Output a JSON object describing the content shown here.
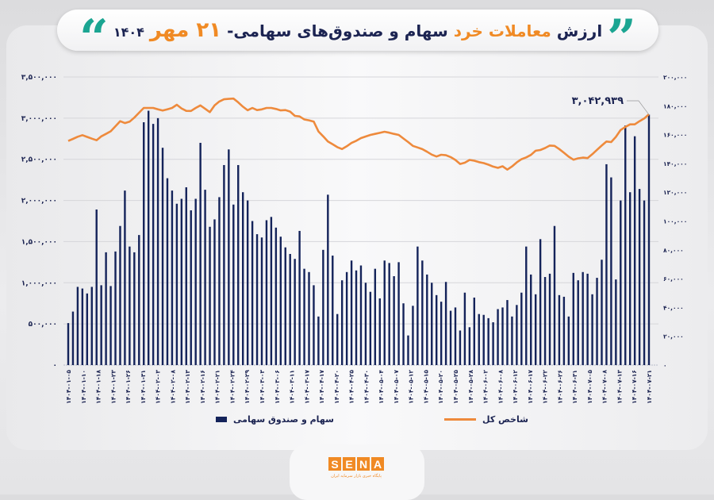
{
  "header": {
    "title_part1": "ارزش",
    "title_highlight": "معاملات خرد",
    "title_part2": "سهام و صندوق‌های سهامی-",
    "title_date": "۲۱ مهر",
    "title_year": "۱۴۰۴",
    "quote_open": "”",
    "quote_close": "“"
  },
  "logo": {
    "letters": [
      "S",
      "E",
      "N",
      "A"
    ],
    "subtitle": "پایگاه خبری بازار سرمایه ایران"
  },
  "colors": {
    "bars": "#14235a",
    "line": "#ee8a3c",
    "accent": "#f08a24",
    "quote": "#1ba592"
  },
  "chart_data": {
    "type": "bar+line",
    "title": "",
    "grid": true,
    "legend_placement": "bottom",
    "left_axis": {
      "ylim": [
        0,
        3500000
      ],
      "tick_labels": [
        "۰",
        "۵۰۰,۰۰۰",
        "۱,۰۰۰,۰۰۰",
        "۱,۵۰۰,۰۰۰",
        "۲,۰۰۰,۰۰۰",
        "۲,۵۰۰,۰۰۰",
        "۳,۰۰۰,۰۰۰",
        "۳,۵۰۰,۰۰۰"
      ],
      "tick_values": [
        0,
        500000,
        1000000,
        1500000,
        2000000,
        2500000,
        3000000,
        3500000
      ]
    },
    "right_axis": {
      "ylim": [
        0,
        200000
      ],
      "tick_labels": [
        "۰",
        "۲۰,۰۰۰",
        "۴۰,۰۰۰",
        "۶۰,۰۰۰",
        "۸۰,۰۰۰",
        "۱۰۰,۰۰۰",
        "۱۲۰,۰۰۰",
        "۱۴۰,۰۰۰",
        "۱۶۰,۰۰۰",
        "۱۸۰,۰۰۰",
        "۲۰۰,۰۰۰"
      ],
      "tick_values": [
        0,
        20000,
        40000,
        60000,
        80000,
        100000,
        120000,
        140000,
        160000,
        180000,
        200000
      ]
    },
    "x_tick_labels": [
      "۱۴۰۴-۰۱-۰۵",
      "۱۴۰۴-۰۱-۱۰",
      "۱۴۰۴-۰۱-۱۸",
      "۱۴۰۴-۰۱-۲۳",
      "۱۴۰۴-۰۱-۲۶",
      "۱۴۰۴-۰۱-۳۱",
      "۱۴۰۴-۰۲-۰۳",
      "۱۴۰۴-۰۲-۰۸",
      "۱۴۰۴-۰۲-۱۳",
      "۱۴۰۴-۰۲-۱۶",
      "۱۴۰۴-۰۲-۲۱",
      "۱۴۰۴-۰۲-۲۴",
      "۱۴۰۴-۰۲-۲۹",
      "۱۴۰۴-۰۳-۰۳",
      "۱۴۰۴-۰۳-۰۶",
      "۱۴۰۴-۰۳-۱۱",
      "۱۴۰۴-۰۳-۱۷",
      "۱۴۰۴-۰۴-۱۷",
      "۱۴۰۴-۰۴-۲۰",
      "۱۴۰۴-۰۴-۲۵",
      "۱۴۰۴-۰۴-۳۰",
      "۱۴۰۴-۰۵-۰۴",
      "۱۴۰۴-۰۵-۰۷",
      "۱۴۰۴-۰۵-۱۲",
      "۱۴۰۴-۰۵-۱۵",
      "۱۴۰۴-۰۵-۲۰",
      "۱۴۰۴-۰۵-۲۵",
      "۱۴۰۴-۰۵-۲۸",
      "۱۴۰۴-۰۶-۰۲",
      "۱۴۰۴-۰۶-۰۸",
      "۱۴۰۴-۰۶-۱۲",
      "۱۴۰۴-۰۶-۱۷",
      "۱۴۰۴-۰۶-۲۲",
      "۱۴۰۴-۰۶-۲۶",
      "۱۴۰۴-۰۶-۳۱",
      "۱۴۰۴-۰۷-۰۵",
      "۱۴۰۴-۰۷-۰۸",
      "۱۴۰۴-۰۷-۱۳",
      "۱۴۰۴-۰۷-۱۶",
      "۱۴۰۴-۰۷-۲۱"
    ],
    "series": [
      {
        "name": "سهام و صندوق سهامی",
        "type": "bar",
        "axis": "left",
        "values": [
          510000,
          650000,
          950000,
          930000,
          870000,
          950000,
          1890000,
          970000,
          1370000,
          960000,
          1380000,
          1690000,
          2120000,
          1440000,
          1370000,
          1580000,
          2950000,
          3090000,
          2930000,
          3000000,
          2640000,
          2270000,
          2120000,
          1960000,
          2020000,
          2160000,
          1880000,
          2020000,
          2700000,
          2130000,
          1680000,
          1770000,
          2040000,
          2430000,
          2620000,
          1950000,
          2430000,
          2100000,
          2000000,
          1750000,
          1590000,
          1550000,
          1760000,
          1800000,
          1670000,
          1560000,
          1430000,
          1350000,
          1290000,
          1630000,
          1170000,
          1130000,
          970000,
          590000,
          1400000,
          2070000,
          1330000,
          620000,
          1030000,
          1130000,
          1270000,
          1150000,
          1210000,
          1000000,
          890000,
          1170000,
          810000,
          1270000,
          1240000,
          1080000,
          1250000,
          750000,
          360000,
          720000,
          1440000,
          1270000,
          1100000,
          1000000,
          850000,
          770000,
          1010000,
          660000,
          700000,
          420000,
          880000,
          460000,
          820000,
          620000,
          610000,
          570000,
          520000,
          680000,
          700000,
          790000,
          590000,
          730000,
          880000,
          1440000,
          1100000,
          860000,
          1530000,
          1070000,
          1110000,
          1690000,
          850000,
          830000,
          590000,
          1120000,
          1030000,
          1130000,
          1110000,
          860000,
          1060000,
          1280000,
          2440000,
          2280000,
          1040000,
          2000000,
          2910000,
          2100000,
          2780000,
          2140000,
          2000000,
          3042939
        ]
      },
      {
        "name": "شاخص کل",
        "type": "line",
        "axis": "right",
        "values": [
          155600,
          157000,
          158500,
          159600,
          158400,
          157200,
          156100,
          158800,
          160500,
          162300,
          165800,
          169300,
          168000,
          169000,
          171800,
          175200,
          178500,
          178500,
          178500,
          177500,
          176700,
          177600,
          178500,
          180700,
          178200,
          176500,
          176400,
          178500,
          180300,
          177900,
          175600,
          180300,
          183000,
          184500,
          184800,
          185000,
          182400,
          179400,
          176900,
          178500,
          177000,
          177500,
          178500,
          178500,
          177800,
          176800,
          177000,
          176000,
          173000,
          172600,
          170500,
          169900,
          169000,
          162200,
          158800,
          155200,
          153300,
          151300,
          150000,
          151900,
          154200,
          155700,
          157600,
          158700,
          159800,
          160500,
          161200,
          162000,
          161300,
          160500,
          159800,
          157300,
          154800,
          152200,
          151100,
          149900,
          148100,
          146100,
          144800,
          146000,
          145700,
          144400,
          142400,
          139600,
          140500,
          142400,
          141900,
          140900,
          140200,
          139100,
          137800,
          136900,
          138000,
          135700,
          137900,
          140700,
          142900,
          144200,
          145900,
          148800,
          149300,
          150700,
          152400,
          152200,
          150000,
          147400,
          144700,
          142600,
          143500,
          144000,
          143700,
          146400,
          149400,
          152400,
          155200,
          154800,
          158400,
          163200,
          165300,
          167100,
          167100,
          169300,
          171200,
          174100
        ]
      }
    ],
    "annotations": [
      {
        "text": "۳,۰۴۲,۹۳۹",
        "target": "last bar"
      }
    ]
  }
}
